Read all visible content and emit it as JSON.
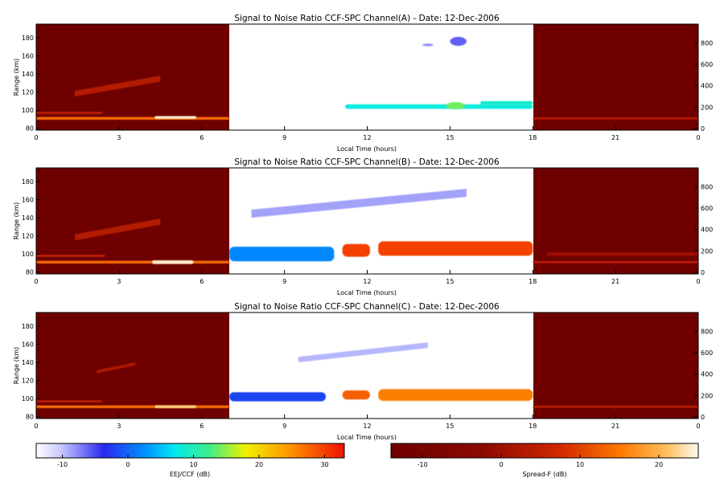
{
  "figure": {
    "panels": [
      {
        "title": "Signal to Noise Ratio CCF-SPC Channel(A) - Date: 12-Dec-2006"
      },
      {
        "title": "Signal to Noise Ratio CCF-SPC Channel(B) - Date: 12-Dec-2006"
      },
      {
        "title": "Signal to Noise Ratio CCF-SPC Channel(C) - Date: 12-Dec-2006"
      }
    ]
  },
  "chart_data": [
    {
      "type": "heatmap",
      "title": "Signal to Noise Ratio CCF-SPC Channel(A) - Date: 12-Dec-2006",
      "xlabel": "Local Time (hours)",
      "ylabel": "Range (km)",
      "xlim": [
        0,
        24
      ],
      "ylim": [
        78,
        195
      ],
      "xticks": [
        "0",
        "3",
        "6",
        "9",
        "12",
        "15",
        "18",
        "21",
        "0"
      ],
      "yticks": [
        "80",
        "100",
        "120",
        "140",
        "160",
        "180"
      ],
      "right_axis_ticks": [
        "0",
        "200",
        "400",
        "600",
        "800"
      ],
      "segments": [
        {
          "from_hour": 0,
          "to_hour": 7,
          "colorbar": "Spread-F (dB)"
        },
        {
          "from_hour": 7,
          "to_hour": 18,
          "colorbar": "EEJ/CCF (dB)"
        },
        {
          "from_hour": 18,
          "to_hour": 24,
          "colorbar": "Spread-F (dB)"
        }
      ],
      "features": [
        {
          "kind": "layer",
          "colormap": "spread",
          "from_hour": 0,
          "to_hour": 7,
          "range_km": 91,
          "thickness_km": 3,
          "snr_db": 14
        },
        {
          "kind": "layer",
          "colormap": "spread",
          "from_hour": 4.3,
          "to_hour": 5.8,
          "range_km": 92,
          "thickness_km": 3,
          "snr_db": 24
        },
        {
          "kind": "layer",
          "colormap": "spread",
          "from_hour": 0,
          "to_hour": 2.4,
          "range_km": 97,
          "thickness_km": 2,
          "snr_db": 6
        },
        {
          "kind": "band",
          "colormap": "spread",
          "from_hour": 1.4,
          "to_hour": 4.5,
          "from_range_km": 115,
          "to_range_km": 138,
          "snr_db": 5
        },
        {
          "kind": "layer",
          "colormap": "spread",
          "from_hour": 18,
          "to_hour": 24,
          "range_km": 91,
          "thickness_km": 2,
          "snr_db": 6
        },
        {
          "kind": "layer",
          "colormap": "eej",
          "from_hour": 11.2,
          "to_hour": 18,
          "range_km": 104,
          "thickness_km": 5,
          "snr_db": 8
        },
        {
          "kind": "layer",
          "colormap": "eej",
          "from_hour": 16.1,
          "to_hour": 18,
          "range_km": 108,
          "thickness_km": 4,
          "snr_db": 9
        },
        {
          "kind": "blob",
          "colormap": "eej",
          "hour": 15.2,
          "range_km": 105,
          "width_h": 0.7,
          "height_km": 8,
          "snr_db": 14
        },
        {
          "kind": "blob",
          "colormap": "eej",
          "hour": 15.3,
          "range_km": 176,
          "width_h": 0.6,
          "height_km": 10,
          "snr_db": -6
        },
        {
          "kind": "blob",
          "colormap": "eej",
          "hour": 14.2,
          "range_km": 172,
          "width_h": 0.4,
          "height_km": 3,
          "snr_db": -8
        }
      ]
    },
    {
      "type": "heatmap",
      "title": "Signal to Noise Ratio CCF-SPC Channel(B) - Date: 12-Dec-2006",
      "xlabel": "Local Time (hours)",
      "ylabel": "Range (km)",
      "xlim": [
        0,
        24
      ],
      "ylim": [
        78,
        195
      ],
      "xticks": [
        "0",
        "3",
        "6",
        "9",
        "12",
        "15",
        "18",
        "21",
        "0"
      ],
      "yticks": [
        "80",
        "100",
        "120",
        "140",
        "160",
        "180"
      ],
      "right_axis_ticks": [
        "0",
        "200",
        "400",
        "600",
        "800"
      ],
      "segments": [
        {
          "from_hour": 0,
          "to_hour": 7,
          "colorbar": "Spread-F (dB)"
        },
        {
          "from_hour": 7,
          "to_hour": 18,
          "colorbar": "EEJ/CCF (dB)"
        },
        {
          "from_hour": 18,
          "to_hour": 24,
          "colorbar": "Spread-F (dB)"
        }
      ],
      "features": [
        {
          "kind": "layer",
          "colormap": "spread",
          "from_hour": 0,
          "to_hour": 7,
          "range_km": 91,
          "thickness_km": 3,
          "snr_db": 14
        },
        {
          "kind": "layer",
          "colormap": "spread",
          "from_hour": 4.2,
          "to_hour": 5.7,
          "range_km": 91,
          "thickness_km": 4,
          "snr_db": 24
        },
        {
          "kind": "layer",
          "colormap": "spread",
          "from_hour": 0,
          "to_hour": 2.5,
          "range_km": 98,
          "thickness_km": 2,
          "snr_db": 6
        },
        {
          "kind": "band",
          "colormap": "spread",
          "from_hour": 1.4,
          "to_hour": 4.5,
          "from_range_km": 115,
          "to_range_km": 139,
          "snr_db": 5
        },
        {
          "kind": "layer",
          "colormap": "spread",
          "from_hour": 18,
          "to_hour": 24,
          "range_km": 91,
          "thickness_km": 2,
          "snr_db": 6
        },
        {
          "kind": "layer",
          "colormap": "spread",
          "from_hour": 18.5,
          "to_hour": 24,
          "range_km": 100,
          "thickness_km": 4,
          "snr_db": 0
        },
        {
          "kind": "layer",
          "colormap": "eej",
          "from_hour": 7,
          "to_hour": 10.8,
          "range_km": 100,
          "thickness_km": 16,
          "snr_db": 2
        },
        {
          "kind": "layer",
          "colormap": "eej",
          "from_hour": 11.1,
          "to_hour": 12.1,
          "range_km": 104,
          "thickness_km": 14,
          "snr_db": 30
        },
        {
          "kind": "layer",
          "colormap": "eej",
          "from_hour": 12.4,
          "to_hour": 18,
          "range_km": 106,
          "thickness_km": 16,
          "snr_db": 30
        },
        {
          "kind": "band",
          "colormap": "eej",
          "from_hour": 7.8,
          "to_hour": 15.6,
          "from_range_km": 140,
          "to_range_km": 172,
          "snr_db": -8
        }
      ]
    },
    {
      "type": "heatmap",
      "title": "Signal to Noise Ratio CCF-SPC Channel(C) - Date: 12-Dec-2006",
      "xlabel": "Local Time (hours)",
      "ylabel": "Range (km)",
      "xlim": [
        0,
        24
      ],
      "ylim": [
        78,
        195
      ],
      "xticks": [
        "0",
        "3",
        "6",
        "9",
        "12",
        "15",
        "18",
        "21",
        "0"
      ],
      "yticks": [
        "80",
        "100",
        "120",
        "140",
        "160",
        "180"
      ],
      "right_axis_ticks": [
        "0",
        "200",
        "400",
        "600",
        "800"
      ],
      "segments": [
        {
          "from_hour": 0,
          "to_hour": 7,
          "colorbar": "Spread-F (dB)"
        },
        {
          "from_hour": 7,
          "to_hour": 18,
          "colorbar": "EEJ/CCF (dB)"
        },
        {
          "from_hour": 18,
          "to_hour": 24,
          "colorbar": "Spread-F (dB)"
        }
      ],
      "features": [
        {
          "kind": "layer",
          "colormap": "spread",
          "from_hour": 0,
          "to_hour": 7,
          "range_km": 91,
          "thickness_km": 3,
          "snr_db": 14
        },
        {
          "kind": "layer",
          "colormap": "spread",
          "from_hour": 4.3,
          "to_hour": 5.8,
          "range_km": 91,
          "thickness_km": 3,
          "snr_db": 22
        },
        {
          "kind": "layer",
          "colormap": "spread",
          "from_hour": 0,
          "to_hour": 2.4,
          "range_km": 97,
          "thickness_km": 2,
          "snr_db": 5
        },
        {
          "kind": "band",
          "colormap": "spread",
          "from_hour": 2.2,
          "to_hour": 3.6,
          "from_range_km": 128,
          "to_range_km": 140,
          "snr_db": 4
        },
        {
          "kind": "layer",
          "colormap": "spread",
          "from_hour": 18,
          "to_hour": 24,
          "range_km": 91,
          "thickness_km": 2,
          "snr_db": 5
        },
        {
          "kind": "layer",
          "colormap": "eej",
          "from_hour": 7,
          "to_hour": 10.5,
          "range_km": 102,
          "thickness_km": 10,
          "snr_db": -2
        },
        {
          "kind": "layer",
          "colormap": "eej",
          "from_hour": 11.1,
          "to_hour": 12.1,
          "range_km": 104,
          "thickness_km": 10,
          "snr_db": 28
        },
        {
          "kind": "layer",
          "colormap": "eej",
          "from_hour": 12.4,
          "to_hour": 18,
          "range_km": 104,
          "thickness_km": 13,
          "snr_db": 26
        },
        {
          "kind": "band",
          "colormap": "eej",
          "from_hour": 9.5,
          "to_hour": 14.2,
          "from_range_km": 140,
          "to_range_km": 162,
          "snr_db": -9
        }
      ]
    }
  ],
  "colorbars": [
    {
      "label": "EEJ/CCF (dB)",
      "colormap": "eej",
      "range_db": [
        -14,
        33
      ],
      "ticks": [
        "-10",
        "0",
        "10",
        "20",
        "30"
      ]
    },
    {
      "label": "Spread-F (dB)",
      "colormap": "spread",
      "range_db": [
        -14,
        25
      ],
      "ticks": [
        "-10",
        "0",
        "10",
        "20"
      ]
    }
  ]
}
